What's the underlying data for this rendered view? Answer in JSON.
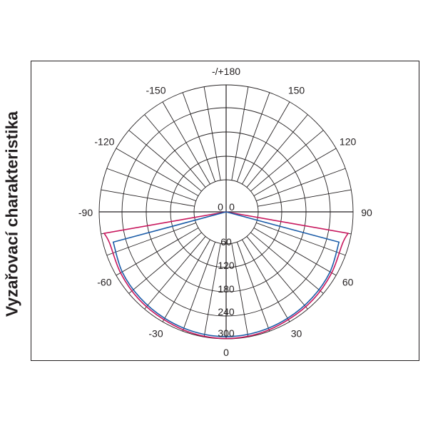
{
  "chart_title": "Vyzařovací charakteristika",
  "chart_data": {
    "type": "polar",
    "title": "Vyzařovací charakteristika",
    "angle_labels": [
      {
        "angle": 180,
        "label": "-/+180"
      },
      {
        "angle": 150,
        "label": "150"
      },
      {
        "angle": 120,
        "label": "120"
      },
      {
        "angle": 90,
        "label": "90"
      },
      {
        "angle": 60,
        "label": "60"
      },
      {
        "angle": 30,
        "label": "30"
      },
      {
        "angle": 0,
        "label": "0"
      },
      {
        "angle": -30,
        "label": "-30"
      },
      {
        "angle": -60,
        "label": "-60"
      },
      {
        "angle": -90,
        "label": "-90"
      },
      {
        "angle": -120,
        "label": "-120"
      },
      {
        "angle": -150,
        "label": "-150"
      }
    ],
    "radial_labels": [
      "0",
      "0",
      "60",
      "120",
      "180",
      "240",
      "300"
    ],
    "rmax": 300,
    "spoke_step_deg": 10,
    "series": [
      {
        "color": "#c8175d",
        "points": [
          [
            -90,
            0
          ],
          [
            -80,
            290
          ],
          [
            -75,
            280
          ],
          [
            -60,
            284
          ],
          [
            -45,
            289
          ],
          [
            -30,
            292
          ],
          [
            -15,
            297
          ],
          [
            0,
            299
          ],
          [
            15,
            297
          ],
          [
            30,
            292
          ],
          [
            45,
            289
          ],
          [
            60,
            284
          ],
          [
            75,
            280
          ],
          [
            80,
            290
          ],
          [
            90,
            0
          ]
        ]
      },
      {
        "color": "#1b5ca8",
        "points": [
          [
            -90,
            0
          ],
          [
            -75,
            268
          ],
          [
            -60,
            278
          ],
          [
            -45,
            283
          ],
          [
            -30,
            287
          ],
          [
            -15,
            291
          ],
          [
            0,
            293
          ],
          [
            15,
            291
          ],
          [
            30,
            287
          ],
          [
            45,
            283
          ],
          [
            60,
            278
          ],
          [
            75,
            268
          ],
          [
            90,
            0
          ]
        ]
      }
    ],
    "grid": true
  }
}
